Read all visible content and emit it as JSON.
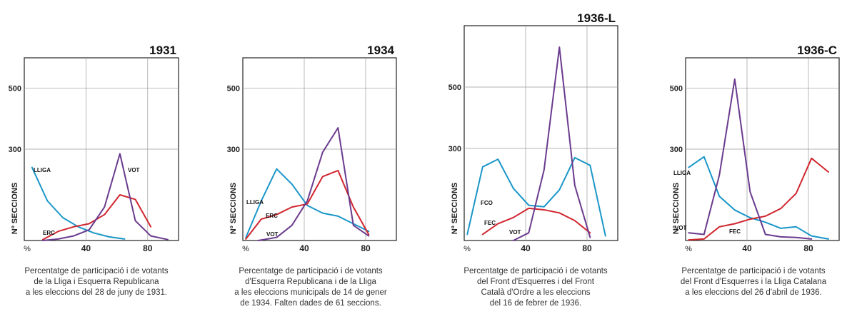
{
  "chart_data": [
    {
      "type": "line",
      "title": "1931",
      "ylabel": "Nº SECCIONS",
      "xlabel": "%",
      "x_ticks": [
        "40",
        "80"
      ],
      "y_ticks": [
        "500",
        "300"
      ],
      "xlim": [
        0,
        100
      ],
      "ylim": [
        0,
        600
      ],
      "grid": true,
      "series": [
        {
          "name": "LLIGA",
          "color": "#1a96c8",
          "x": [
            5,
            15,
            25,
            35,
            45,
            55,
            65
          ],
          "y": [
            240,
            130,
            75,
            45,
            25,
            12,
            5
          ]
        },
        {
          "name": "ERC",
          "color": "#d0262f",
          "x": [
            12,
            22,
            32,
            42,
            52,
            62,
            72,
            82
          ],
          "y": [
            3,
            30,
            45,
            55,
            85,
            150,
            135,
            45
          ]
        },
        {
          "name": "VOT",
          "color": "#6a3a8e",
          "x": [
            12,
            22,
            32,
            42,
            52,
            62,
            72,
            82,
            93
          ],
          "y": [
            0,
            5,
            15,
            35,
            110,
            285,
            65,
            15,
            3
          ]
        }
      ],
      "caption": [
        "Percentatge de participació i de votants",
        "de la Lliga i Esquerra Republicana",
        "a les eleccions del 28 de juny de 1931."
      ]
    },
    {
      "type": "line",
      "title": "1934",
      "ylabel": "Nº SECCIONS",
      "xlabel": "%",
      "x_ticks": [
        "40",
        "80"
      ],
      "y_ticks": [
        "500",
        "300"
      ],
      "xlim": [
        0,
        100
      ],
      "ylim": [
        0,
        600
      ],
      "grid": true,
      "series": [
        {
          "name": "LLIGA",
          "color": "#1a96c8",
          "x": [
            2,
            12,
            22,
            32,
            42,
            52,
            62,
            72,
            82
          ],
          "y": [
            10,
            130,
            235,
            185,
            115,
            90,
            80,
            55,
            30
          ]
        },
        {
          "name": "ERC",
          "color": "#d0262f",
          "x": [
            2,
            12,
            22,
            32,
            42,
            52,
            62,
            72,
            82
          ],
          "y": [
            5,
            70,
            85,
            110,
            120,
            210,
            230,
            110,
            20
          ]
        },
        {
          "name": "VOT",
          "color": "#6a3a8e",
          "x": [
            10,
            22,
            32,
            42,
            52,
            62,
            72,
            82
          ],
          "y": [
            0,
            10,
            50,
            130,
            290,
            370,
            50,
            15
          ]
        }
      ],
      "caption": [
        "Percentatge de participació i de votants",
        "d'Esquerra Republicana i de la Lliga",
        "a les eleccions municipals de 14 de gener",
        "de 1934. Falten dades de 61 seccions."
      ]
    },
    {
      "type": "line",
      "title": "1936-L",
      "ylabel": "Nº SECCIONS",
      "xlabel": "%",
      "x_ticks": [
        "40",
        "80"
      ],
      "y_ticks": [
        "500",
        "300"
      ],
      "xlim": [
        0,
        100
      ],
      "ylim": [
        0,
        700
      ],
      "grid": true,
      "series": [
        {
          "name": "FCO",
          "color": "#1a96c8",
          "x": [
            2,
            12,
            22,
            32,
            42,
            52,
            62,
            72,
            82,
            92
          ],
          "y": [
            20,
            240,
            265,
            170,
            115,
            110,
            165,
            270,
            245,
            15
          ]
        },
        {
          "name": "FEC",
          "color": "#d0262f",
          "x": [
            12,
            22,
            32,
            42,
            52,
            62,
            72,
            82
          ],
          "y": [
            20,
            55,
            75,
            105,
            100,
            90,
            65,
            25
          ]
        },
        {
          "name": "VOT",
          "color": "#6a3a8e",
          "x": [
            32,
            42,
            52,
            62,
            72,
            82
          ],
          "y": [
            0,
            25,
            230,
            630,
            180,
            10
          ]
        }
      ],
      "caption": [
        "Percentatge de participació i de votants",
        "del Front d'Esquerres i del Front",
        "Català d'Ordre a les eleccions",
        "del 16 de febrer de 1936."
      ]
    },
    {
      "type": "line",
      "title": "1936-C",
      "ylabel": "Nº SECCIONS",
      "xlabel": "%",
      "x_ticks": [
        "40",
        "80"
      ],
      "y_ticks": [
        "500",
        "300"
      ],
      "xlim": [
        0,
        100
      ],
      "ylim": [
        0,
        600
      ],
      "grid": true,
      "series": [
        {
          "name": "LLIGA",
          "color": "#1a96c8",
          "x": [
            2,
            12,
            22,
            32,
            42,
            52,
            62,
            72,
            82,
            93
          ],
          "y": [
            240,
            275,
            145,
            100,
            75,
            60,
            40,
            45,
            15,
            5
          ]
        },
        {
          "name": "FEC",
          "color": "#d0262f",
          "x": [
            2,
            12,
            22,
            32,
            42,
            52,
            62,
            72,
            82,
            93
          ],
          "y": [
            2,
            5,
            45,
            55,
            70,
            80,
            105,
            155,
            270,
            225
          ]
        },
        {
          "name": "VOT",
          "color": "#6a3a8e",
          "x": [
            2,
            12,
            22,
            32,
            42,
            52,
            62,
            72,
            82
          ],
          "y": [
            25,
            20,
            215,
            530,
            160,
            20,
            12,
            10,
            5
          ]
        }
      ],
      "caption": [
        "Percentatge de participació i de votants",
        "del Front d'Esquerres i la Lliga Catalana",
        "a les eleccions del 26 d'abril de 1936."
      ]
    }
  ]
}
